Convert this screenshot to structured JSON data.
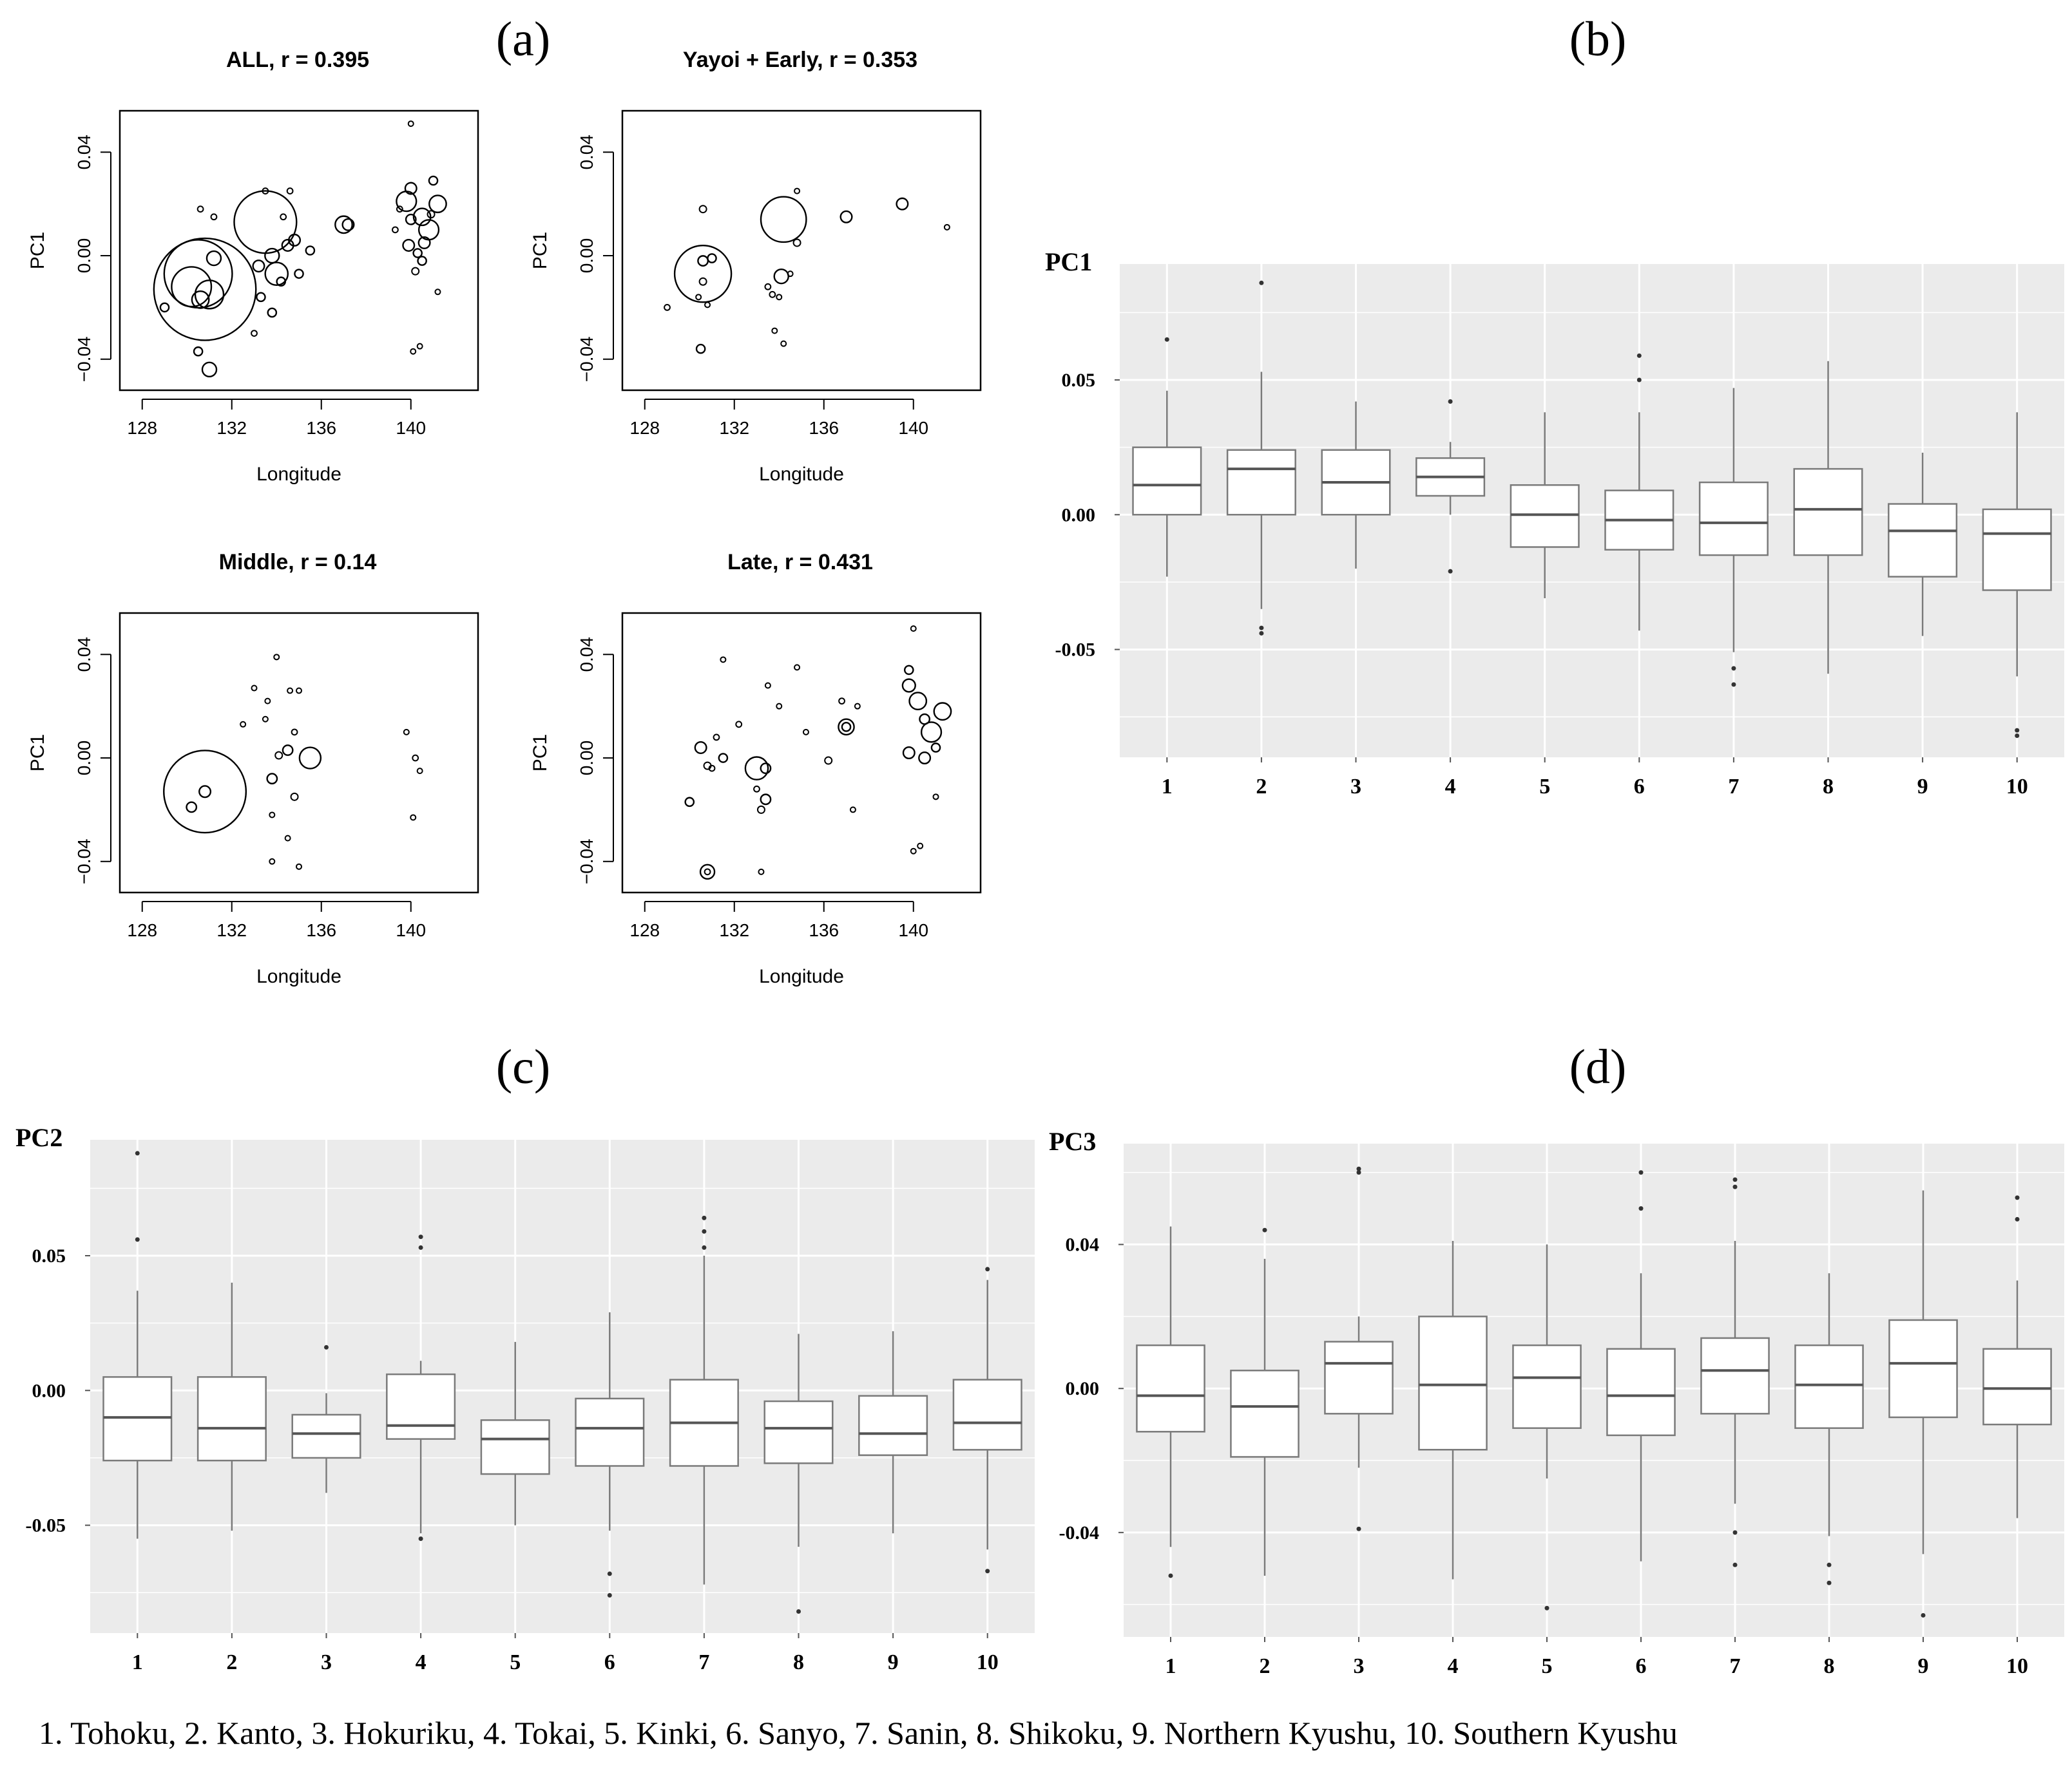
{
  "figure": {
    "panel_labels": {
      "a": "(a)",
      "b": "(b)",
      "c": "(c)",
      "d": "(d)"
    },
    "footer": "1. Tohoku, 2. Kanto, 3. Hokuriku, 4. Tokai, 5. Kinki, 6. Sanyo, 7. Sanin, 8. Shikoku, 9. Northern Kyushu, 10. Southern Kyushu"
  },
  "colors": {
    "panel_bg": "#ebebeb",
    "box_fill": "#ffffff",
    "box_line": "#7a7a7a",
    "ink": "#000000"
  },
  "chart_data": [
    {
      "id": "a1",
      "type": "scatter",
      "title": "ALL, r = 0.395",
      "xlabel": "Longitude",
      "ylabel": "PC1",
      "xlim": [
        127,
        143
      ],
      "ylim": [
        -0.052,
        0.056
      ],
      "xticks": [
        "128",
        "132",
        "136",
        "140"
      ],
      "xtick_values": [
        128,
        132,
        136,
        140
      ],
      "yticks": [
        "−0.04",
        "0.00",
        "0.04"
      ],
      "ytick_values": [
        -0.04,
        0,
        0.04
      ],
      "points": [
        [
          130.8,
          -0.013,
          3.6
        ],
        [
          130.5,
          -0.007,
          2.4
        ],
        [
          130.2,
          -0.012,
          1.4
        ],
        [
          131.0,
          -0.015,
          1.0
        ],
        [
          130.6,
          -0.017,
          0.6
        ],
        [
          131.2,
          -0.001,
          0.5
        ],
        [
          131.0,
          -0.044,
          0.5
        ],
        [
          130.5,
          -0.037,
          0.3
        ],
        [
          129.0,
          -0.02,
          0.3
        ],
        [
          131.2,
          0.015,
          0.2
        ],
        [
          130.6,
          0.018,
          0.2
        ],
        [
          133.5,
          0.013,
          2.2
        ],
        [
          134.0,
          -0.007,
          0.8
        ],
        [
          133.8,
          0.0,
          0.5
        ],
        [
          134.5,
          0.004,
          0.4
        ],
        [
          134.8,
          0.006,
          0.4
        ],
        [
          135.0,
          -0.007,
          0.3
        ],
        [
          133.2,
          -0.004,
          0.4
        ],
        [
          134.2,
          -0.01,
          0.3
        ],
        [
          133.3,
          -0.016,
          0.3
        ],
        [
          133.8,
          -0.022,
          0.3
        ],
        [
          134.6,
          0.025,
          0.2
        ],
        [
          134.3,
          0.015,
          0.2
        ],
        [
          133.0,
          -0.03,
          0.2
        ],
        [
          133.5,
          0.025,
          0.2
        ],
        [
          135.5,
          0.002,
          0.3
        ],
        [
          137.0,
          0.012,
          0.6
        ],
        [
          137.2,
          0.012,
          0.4
        ],
        [
          139.8,
          0.021,
          0.7
        ],
        [
          140.0,
          0.026,
          0.4
        ],
        [
          139.9,
          0.004,
          0.4
        ],
        [
          140.3,
          0.001,
          0.3
        ],
        [
          140.5,
          0.015,
          0.6
        ],
        [
          140.8,
          0.01,
          0.7
        ],
        [
          141.2,
          0.02,
          0.6
        ],
        [
          140.6,
          0.005,
          0.4
        ],
        [
          140.0,
          0.014,
          0.35
        ],
        [
          141.0,
          0.029,
          0.3
        ],
        [
          140.5,
          -0.002,
          0.3
        ],
        [
          140.2,
          -0.006,
          0.25
        ],
        [
          140.9,
          0.016,
          0.25
        ],
        [
          139.5,
          0.018,
          0.2
        ],
        [
          139.3,
          0.01,
          0.2
        ],
        [
          140.0,
          0.051,
          0.15
        ],
        [
          140.1,
          -0.037,
          0.15
        ],
        [
          140.4,
          -0.035,
          0.15
        ],
        [
          141.2,
          -0.014,
          0.15
        ]
      ]
    },
    {
      "id": "a2",
      "type": "scatter",
      "title": "Yayoi + Early, r = 0.353",
      "xlabel": "Longitude",
      "ylabel": "PC1",
      "xlim": [
        127,
        143
      ],
      "ylim": [
        -0.052,
        0.056
      ],
      "xticks": [
        "128",
        "132",
        "136",
        "140"
      ],
      "xtick_values": [
        128,
        132,
        136,
        140
      ],
      "yticks": [
        "−0.04",
        "0.00",
        "0.04"
      ],
      "ytick_values": [
        -0.04,
        0,
        0.04
      ],
      "points": [
        [
          130.6,
          -0.007,
          2.0
        ],
        [
          130.6,
          -0.002,
          0.35
        ],
        [
          131.0,
          -0.001,
          0.3
        ],
        [
          130.6,
          -0.01,
          0.25
        ],
        [
          130.5,
          -0.036,
          0.3
        ],
        [
          130.6,
          0.018,
          0.25
        ],
        [
          129.0,
          -0.02,
          0.2
        ],
        [
          130.4,
          -0.016,
          0.15
        ],
        [
          130.8,
          -0.019,
          0.15
        ],
        [
          134.2,
          0.014,
          1.6
        ],
        [
          134.1,
          -0.008,
          0.5
        ],
        [
          134.8,
          0.005,
          0.25
        ],
        [
          133.5,
          -0.012,
          0.2
        ],
        [
          133.7,
          -0.015,
          0.2
        ],
        [
          134.0,
          -0.016,
          0.15
        ],
        [
          134.5,
          -0.007,
          0.15
        ],
        [
          133.8,
          -0.029,
          0.15
        ],
        [
          134.2,
          -0.034,
          0.15
        ],
        [
          134.8,
          0.025,
          0.15
        ],
        [
          137.0,
          0.015,
          0.4
        ],
        [
          139.5,
          0.02,
          0.4
        ],
        [
          141.5,
          0.011,
          0.15
        ]
      ]
    },
    {
      "id": "a3",
      "type": "scatter",
      "title": "Middle, r = 0.14",
      "xlabel": "Longitude",
      "ylabel": "PC1",
      "xlim": [
        127,
        143
      ],
      "ylim": [
        -0.052,
        0.056
      ],
      "xticks": [
        "128",
        "132",
        "136",
        "140"
      ],
      "xtick_values": [
        128,
        132,
        136,
        140
      ],
      "yticks": [
        "−0.04",
        "0.00",
        "0.04"
      ],
      "ytick_values": [
        -0.04,
        0,
        0.04
      ],
      "points": [
        [
          130.8,
          -0.013,
          2.9
        ],
        [
          130.8,
          -0.013,
          0.4
        ],
        [
          130.2,
          -0.019,
          0.35
        ],
        [
          133.8,
          -0.008,
          0.35
        ],
        [
          134.5,
          0.003,
          0.35
        ],
        [
          135.5,
          0.0,
          0.75
        ],
        [
          134.8,
          -0.015,
          0.25
        ],
        [
          134.1,
          0.001,
          0.25
        ],
        [
          133.5,
          0.015,
          0.15
        ],
        [
          134.0,
          0.039,
          0.15
        ],
        [
          133.0,
          0.027,
          0.15
        ],
        [
          132.5,
          0.013,
          0.15
        ],
        [
          134.6,
          0.026,
          0.15
        ],
        [
          135.0,
          0.026,
          0.15
        ],
        [
          134.5,
          -0.031,
          0.15
        ],
        [
          135.0,
          -0.042,
          0.15
        ],
        [
          133.8,
          -0.04,
          0.15
        ],
        [
          133.8,
          -0.022,
          0.15
        ],
        [
          133.6,
          0.022,
          0.15
        ],
        [
          134.8,
          0.01,
          0.2
        ],
        [
          139.8,
          0.01,
          0.15
        ],
        [
          140.2,
          0.0,
          0.2
        ],
        [
          140.4,
          -0.005,
          0.15
        ],
        [
          140.1,
          -0.023,
          0.15
        ]
      ]
    },
    {
      "id": "a4",
      "type": "scatter",
      "title": "Late, r = 0.431",
      "xlabel": "Longitude",
      "ylabel": "PC1",
      "xlim": [
        127,
        143
      ],
      "ylim": [
        -0.052,
        0.056
      ],
      "xticks": [
        "128",
        "132",
        "136",
        "140"
      ],
      "xtick_values": [
        128,
        132,
        136,
        140
      ],
      "yticks": [
        "−0.04",
        "0.00",
        "0.04"
      ],
      "ytick_values": [
        -0.04,
        0,
        0.04
      ],
      "points": [
        [
          130.8,
          -0.044,
          0.5
        ],
        [
          130.8,
          -0.044,
          0.2
        ],
        [
          130.5,
          0.004,
          0.4
        ],
        [
          130.8,
          -0.003,
          0.25
        ],
        [
          130.0,
          -0.017,
          0.3
        ],
        [
          131.5,
          0.0,
          0.3
        ],
        [
          131.2,
          0.008,
          0.2
        ],
        [
          131.0,
          -0.004,
          0.2
        ],
        [
          133.0,
          -0.004,
          0.8
        ],
        [
          133.4,
          -0.004,
          0.35
        ],
        [
          133.4,
          -0.016,
          0.35
        ],
        [
          133.2,
          -0.02,
          0.25
        ],
        [
          133.0,
          -0.012,
          0.2
        ],
        [
          132.2,
          0.013,
          0.2
        ],
        [
          131.5,
          0.038,
          0.15
        ],
        [
          133.5,
          0.028,
          0.15
        ],
        [
          134.0,
          0.02,
          0.15
        ],
        [
          134.8,
          0.035,
          0.15
        ],
        [
          135.2,
          0.01,
          0.15
        ],
        [
          133.2,
          -0.044,
          0.15
        ],
        [
          137.0,
          0.012,
          0.55
        ],
        [
          137.0,
          0.012,
          0.3
        ],
        [
          136.2,
          -0.001,
          0.25
        ],
        [
          136.8,
          0.022,
          0.2
        ],
        [
          137.5,
          0.02,
          0.15
        ],
        [
          137.3,
          -0.02,
          0.15
        ],
        [
          140.8,
          0.01,
          0.7
        ],
        [
          140.2,
          0.022,
          0.6
        ],
        [
          141.3,
          0.018,
          0.6
        ],
        [
          139.8,
          0.028,
          0.45
        ],
        [
          139.8,
          0.002,
          0.4
        ],
        [
          140.5,
          0.0,
          0.4
        ],
        [
          139.8,
          0.034,
          0.3
        ],
        [
          140.5,
          0.015,
          0.35
        ],
        [
          141.0,
          0.004,
          0.3
        ],
        [
          140.0,
          0.05,
          0.15
        ],
        [
          140.3,
          -0.034,
          0.15
        ],
        [
          140.0,
          -0.036,
          0.15
        ],
        [
          141.0,
          -0.015,
          0.15
        ]
      ]
    },
    {
      "id": "b",
      "type": "box",
      "ylabel": "PC1",
      "categories": [
        "1",
        "2",
        "3",
        "4",
        "5",
        "6",
        "7",
        "8",
        "9",
        "10"
      ],
      "ylim": [
        -0.09,
        0.093
      ],
      "yticks": [
        "0.05",
        "0.00",
        "-0.05"
      ],
      "ytick_values": [
        0.05,
        0,
        -0.05
      ],
      "boxes": [
        {
          "whisker_low": -0.023,
          "q1": 0.0,
          "median": 0.011,
          "q3": 0.025,
          "whisker_high": 0.046,
          "outliers": [
            0.065
          ]
        },
        {
          "whisker_low": -0.035,
          "q1": 0.0,
          "median": 0.017,
          "q3": 0.024,
          "whisker_high": 0.053,
          "outliers": [
            0.086,
            -0.042,
            -0.044
          ]
        },
        {
          "whisker_low": -0.02,
          "q1": 0.0,
          "median": 0.012,
          "q3": 0.024,
          "whisker_high": 0.042,
          "outliers": []
        },
        {
          "whisker_low": 0.0,
          "q1": 0.007,
          "median": 0.014,
          "q3": 0.021,
          "whisker_high": 0.027,
          "outliers": [
            0.042,
            -0.021
          ]
        },
        {
          "whisker_low": -0.031,
          "q1": -0.012,
          "median": 0.0,
          "q3": 0.011,
          "whisker_high": 0.038,
          "outliers": []
        },
        {
          "whisker_low": -0.043,
          "q1": -0.013,
          "median": -0.002,
          "q3": 0.009,
          "whisker_high": 0.038,
          "outliers": [
            0.059,
            0.05
          ]
        },
        {
          "whisker_low": -0.051,
          "q1": -0.015,
          "median": -0.003,
          "q3": 0.012,
          "whisker_high": 0.047,
          "outliers": [
            -0.057,
            -0.063
          ]
        },
        {
          "whisker_low": -0.059,
          "q1": -0.015,
          "median": 0.002,
          "q3": 0.017,
          "whisker_high": 0.057,
          "outliers": []
        },
        {
          "whisker_low": -0.045,
          "q1": -0.023,
          "median": -0.006,
          "q3": 0.004,
          "whisker_high": 0.023,
          "outliers": []
        },
        {
          "whisker_low": -0.06,
          "q1": -0.028,
          "median": -0.007,
          "q3": 0.002,
          "whisker_high": 0.038,
          "outliers": [
            -0.08,
            -0.082
          ]
        }
      ]
    },
    {
      "id": "c",
      "type": "box",
      "ylabel": "PC2",
      "categories": [
        "1",
        "2",
        "3",
        "4",
        "5",
        "6",
        "7",
        "8",
        "9",
        "10"
      ],
      "ylim": [
        -0.09,
        0.093
      ],
      "yticks": [
        "0.05",
        "0.00",
        "-0.05"
      ],
      "ytick_values": [
        0.05,
        0,
        -0.05
      ],
      "boxes": [
        {
          "whisker_low": -0.055,
          "q1": -0.026,
          "median": -0.01,
          "q3": 0.005,
          "whisker_high": 0.037,
          "outliers": [
            0.088,
            0.056
          ]
        },
        {
          "whisker_low": -0.052,
          "q1": -0.026,
          "median": -0.014,
          "q3": 0.005,
          "whisker_high": 0.04,
          "outliers": []
        },
        {
          "whisker_low": -0.038,
          "q1": -0.025,
          "median": -0.016,
          "q3": -0.009,
          "whisker_high": -0.001,
          "outliers": [
            0.016
          ]
        },
        {
          "whisker_low": -0.053,
          "q1": -0.018,
          "median": -0.013,
          "q3": 0.006,
          "whisker_high": 0.011,
          "outliers": [
            0.057,
            0.053,
            -0.055
          ]
        },
        {
          "whisker_low": -0.05,
          "q1": -0.031,
          "median": -0.018,
          "q3": -0.011,
          "whisker_high": 0.018,
          "outliers": []
        },
        {
          "whisker_low": -0.052,
          "q1": -0.028,
          "median": -0.014,
          "q3": -0.003,
          "whisker_high": 0.029,
          "outliers": [
            -0.068,
            -0.076
          ]
        },
        {
          "whisker_low": -0.072,
          "q1": -0.028,
          "median": -0.012,
          "q3": 0.004,
          "whisker_high": 0.05,
          "outliers": [
            0.064,
            0.059,
            0.053
          ]
        },
        {
          "whisker_low": -0.058,
          "q1": -0.027,
          "median": -0.014,
          "q3": -0.004,
          "whisker_high": 0.021,
          "outliers": [
            -0.082
          ]
        },
        {
          "whisker_low": -0.053,
          "q1": -0.024,
          "median": -0.016,
          "q3": -0.002,
          "whisker_high": 0.022,
          "outliers": []
        },
        {
          "whisker_low": -0.059,
          "q1": -0.022,
          "median": -0.012,
          "q3": 0.004,
          "whisker_high": 0.041,
          "outliers": [
            0.045,
            -0.067
          ]
        }
      ]
    },
    {
      "id": "d",
      "type": "box",
      "ylabel": "PC3",
      "categories": [
        "1",
        "2",
        "3",
        "4",
        "5",
        "6",
        "7",
        "8",
        "9",
        "10"
      ],
      "ylim": [
        -0.069,
        0.068
      ],
      "yticks": [
        "0.04",
        "0.00",
        "-0.04"
      ],
      "ytick_values": [
        0.04,
        0,
        -0.04
      ],
      "boxes": [
        {
          "whisker_low": -0.044,
          "q1": -0.012,
          "median": -0.002,
          "q3": 0.012,
          "whisker_high": 0.045,
          "outliers": [
            -0.052
          ]
        },
        {
          "whisker_low": -0.052,
          "q1": -0.019,
          "median": -0.005,
          "q3": 0.005,
          "whisker_high": 0.036,
          "outliers": [
            0.044
          ]
        },
        {
          "whisker_low": -0.022,
          "q1": -0.007,
          "median": 0.007,
          "q3": 0.013,
          "whisker_high": 0.02,
          "outliers": [
            0.061,
            0.06,
            -0.039
          ]
        },
        {
          "whisker_low": -0.053,
          "q1": -0.017,
          "median": 0.001,
          "q3": 0.02,
          "whisker_high": 0.041,
          "outliers": []
        },
        {
          "whisker_low": -0.025,
          "q1": -0.011,
          "median": 0.003,
          "q3": 0.012,
          "whisker_high": 0.04,
          "outliers": [
            -0.061
          ]
        },
        {
          "whisker_low": -0.048,
          "q1": -0.013,
          "median": -0.002,
          "q3": 0.011,
          "whisker_high": 0.032,
          "outliers": [
            0.06,
            0.05
          ]
        },
        {
          "whisker_low": -0.032,
          "q1": -0.007,
          "median": 0.005,
          "q3": 0.014,
          "whisker_high": 0.041,
          "outliers": [
            0.058,
            0.056,
            -0.04,
            -0.049
          ]
        },
        {
          "whisker_low": -0.041,
          "q1": -0.011,
          "median": 0.001,
          "q3": 0.012,
          "whisker_high": 0.032,
          "outliers": [
            -0.049,
            -0.054
          ]
        },
        {
          "whisker_low": -0.046,
          "q1": -0.008,
          "median": 0.007,
          "q3": 0.019,
          "whisker_high": 0.055,
          "outliers": [
            -0.063
          ]
        },
        {
          "whisker_low": -0.036,
          "q1": -0.01,
          "median": 0.0,
          "q3": 0.011,
          "whisker_high": 0.03,
          "outliers": [
            0.053,
            0.047
          ]
        }
      ]
    }
  ]
}
